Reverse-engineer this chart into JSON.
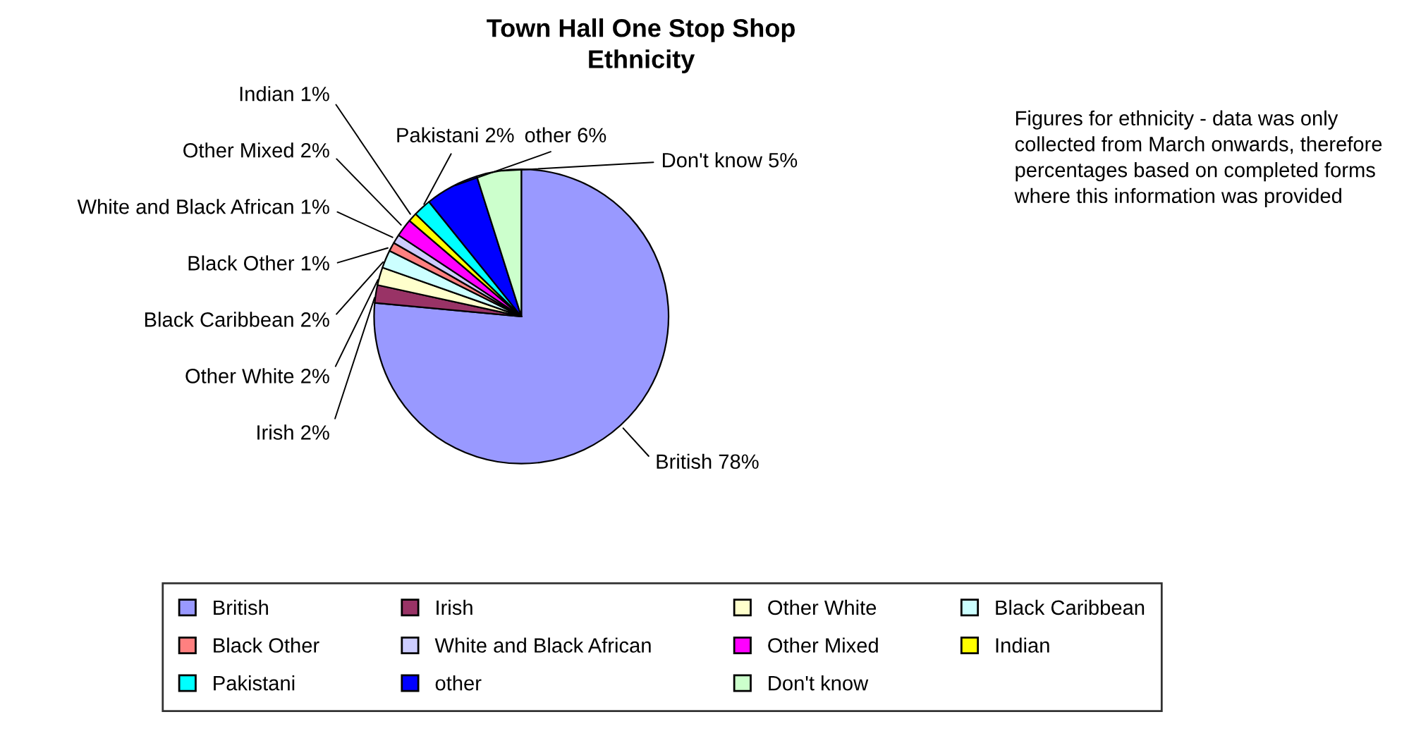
{
  "chart_data": {
    "type": "pie",
    "title": "Town Hall One Stop Shop\nEthnicity",
    "categories": [
      "British",
      "Irish",
      "Other White",
      "Black Caribbean",
      "Black Other",
      "White and Black African",
      "Other Mixed",
      "Indian",
      "Pakistani",
      "other",
      "Don't know"
    ],
    "values": [
      78,
      2,
      2,
      2,
      1,
      1,
      2,
      1,
      2,
      6,
      5
    ],
    "value_labels": [
      "78%",
      "2%",
      "2%",
      "2%",
      "1%",
      "1%",
      "2%",
      "1%",
      "2%",
      "6%",
      "5%"
    ],
    "colors": [
      "#9999ff",
      "#993366",
      "#ffffcc",
      "#ccffff",
      "#ff8080",
      "#ccccff",
      "#ff00ff",
      "#ffff00",
      "#00ffff",
      "#0000ff",
      "#ccffcc"
    ],
    "annotations": [
      "Figures for ethnicity - data was only collected from March onwards, therefore percentages based on completed forms where this information was provided"
    ],
    "legend": "bottom"
  }
}
